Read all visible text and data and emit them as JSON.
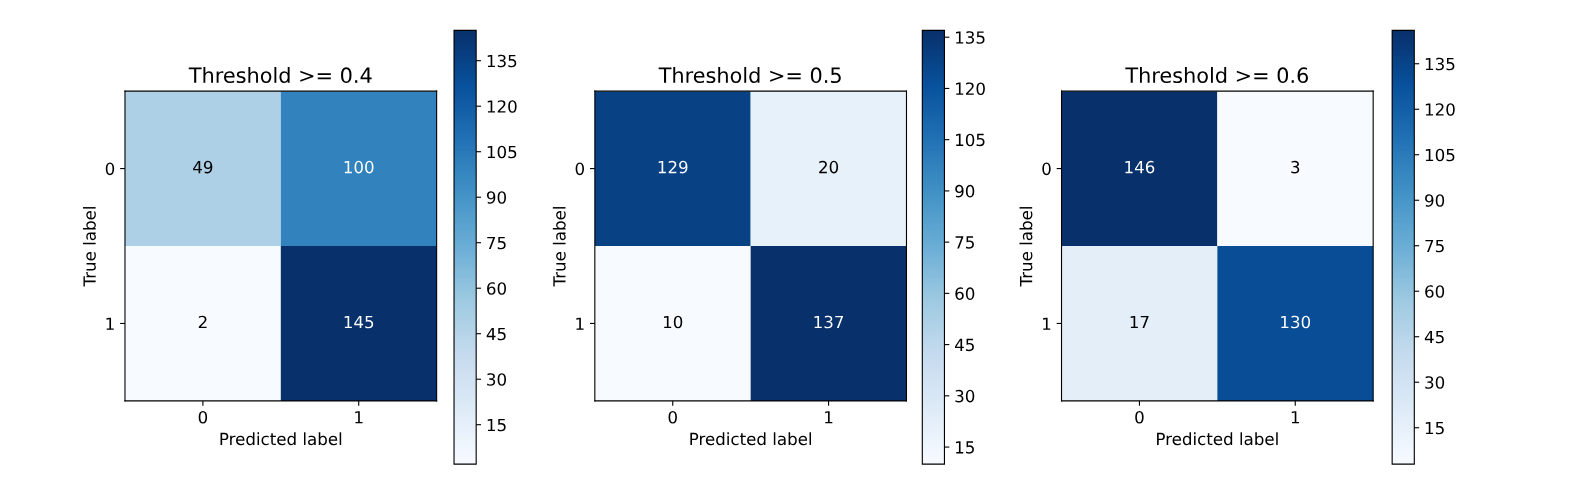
{
  "chart_data": [
    {
      "type": "heatmap",
      "title": "Threshold >= 0.4",
      "xlabel": "Predicted label",
      "ylabel": "True label",
      "categories": [
        "0",
        "1"
      ],
      "y_categories": [
        "0",
        "1"
      ],
      "cells": [
        [
          49,
          100
        ],
        [
          2,
          145
        ]
      ],
      "data_labels": true,
      "clim": [
        2,
        145
      ],
      "cticks": [
        15,
        30,
        45,
        60,
        75,
        90,
        105,
        120,
        135
      ]
    },
    {
      "type": "heatmap",
      "title": "Threshold >= 0.5",
      "xlabel": "Predicted label",
      "ylabel": "True label",
      "categories": [
        "0",
        "1"
      ],
      "y_categories": [
        "0",
        "1"
      ],
      "cells": [
        [
          129,
          20
        ],
        [
          10,
          137
        ]
      ],
      "data_labels": true,
      "clim": [
        10,
        137
      ],
      "cticks": [
        15,
        30,
        45,
        60,
        75,
        90,
        105,
        120,
        135
      ]
    },
    {
      "type": "heatmap",
      "title": "Threshold >= 0.6",
      "xlabel": "Predicted label",
      "ylabel": "True label",
      "categories": [
        "0",
        "1"
      ],
      "y_categories": [
        "0",
        "1"
      ],
      "cells": [
        [
          146,
          3
        ],
        [
          17,
          130
        ]
      ],
      "data_labels": true,
      "clim": [
        3,
        146
      ],
      "cticks": [
        15,
        30,
        45,
        60,
        75,
        90,
        105,
        120,
        135
      ]
    }
  ]
}
